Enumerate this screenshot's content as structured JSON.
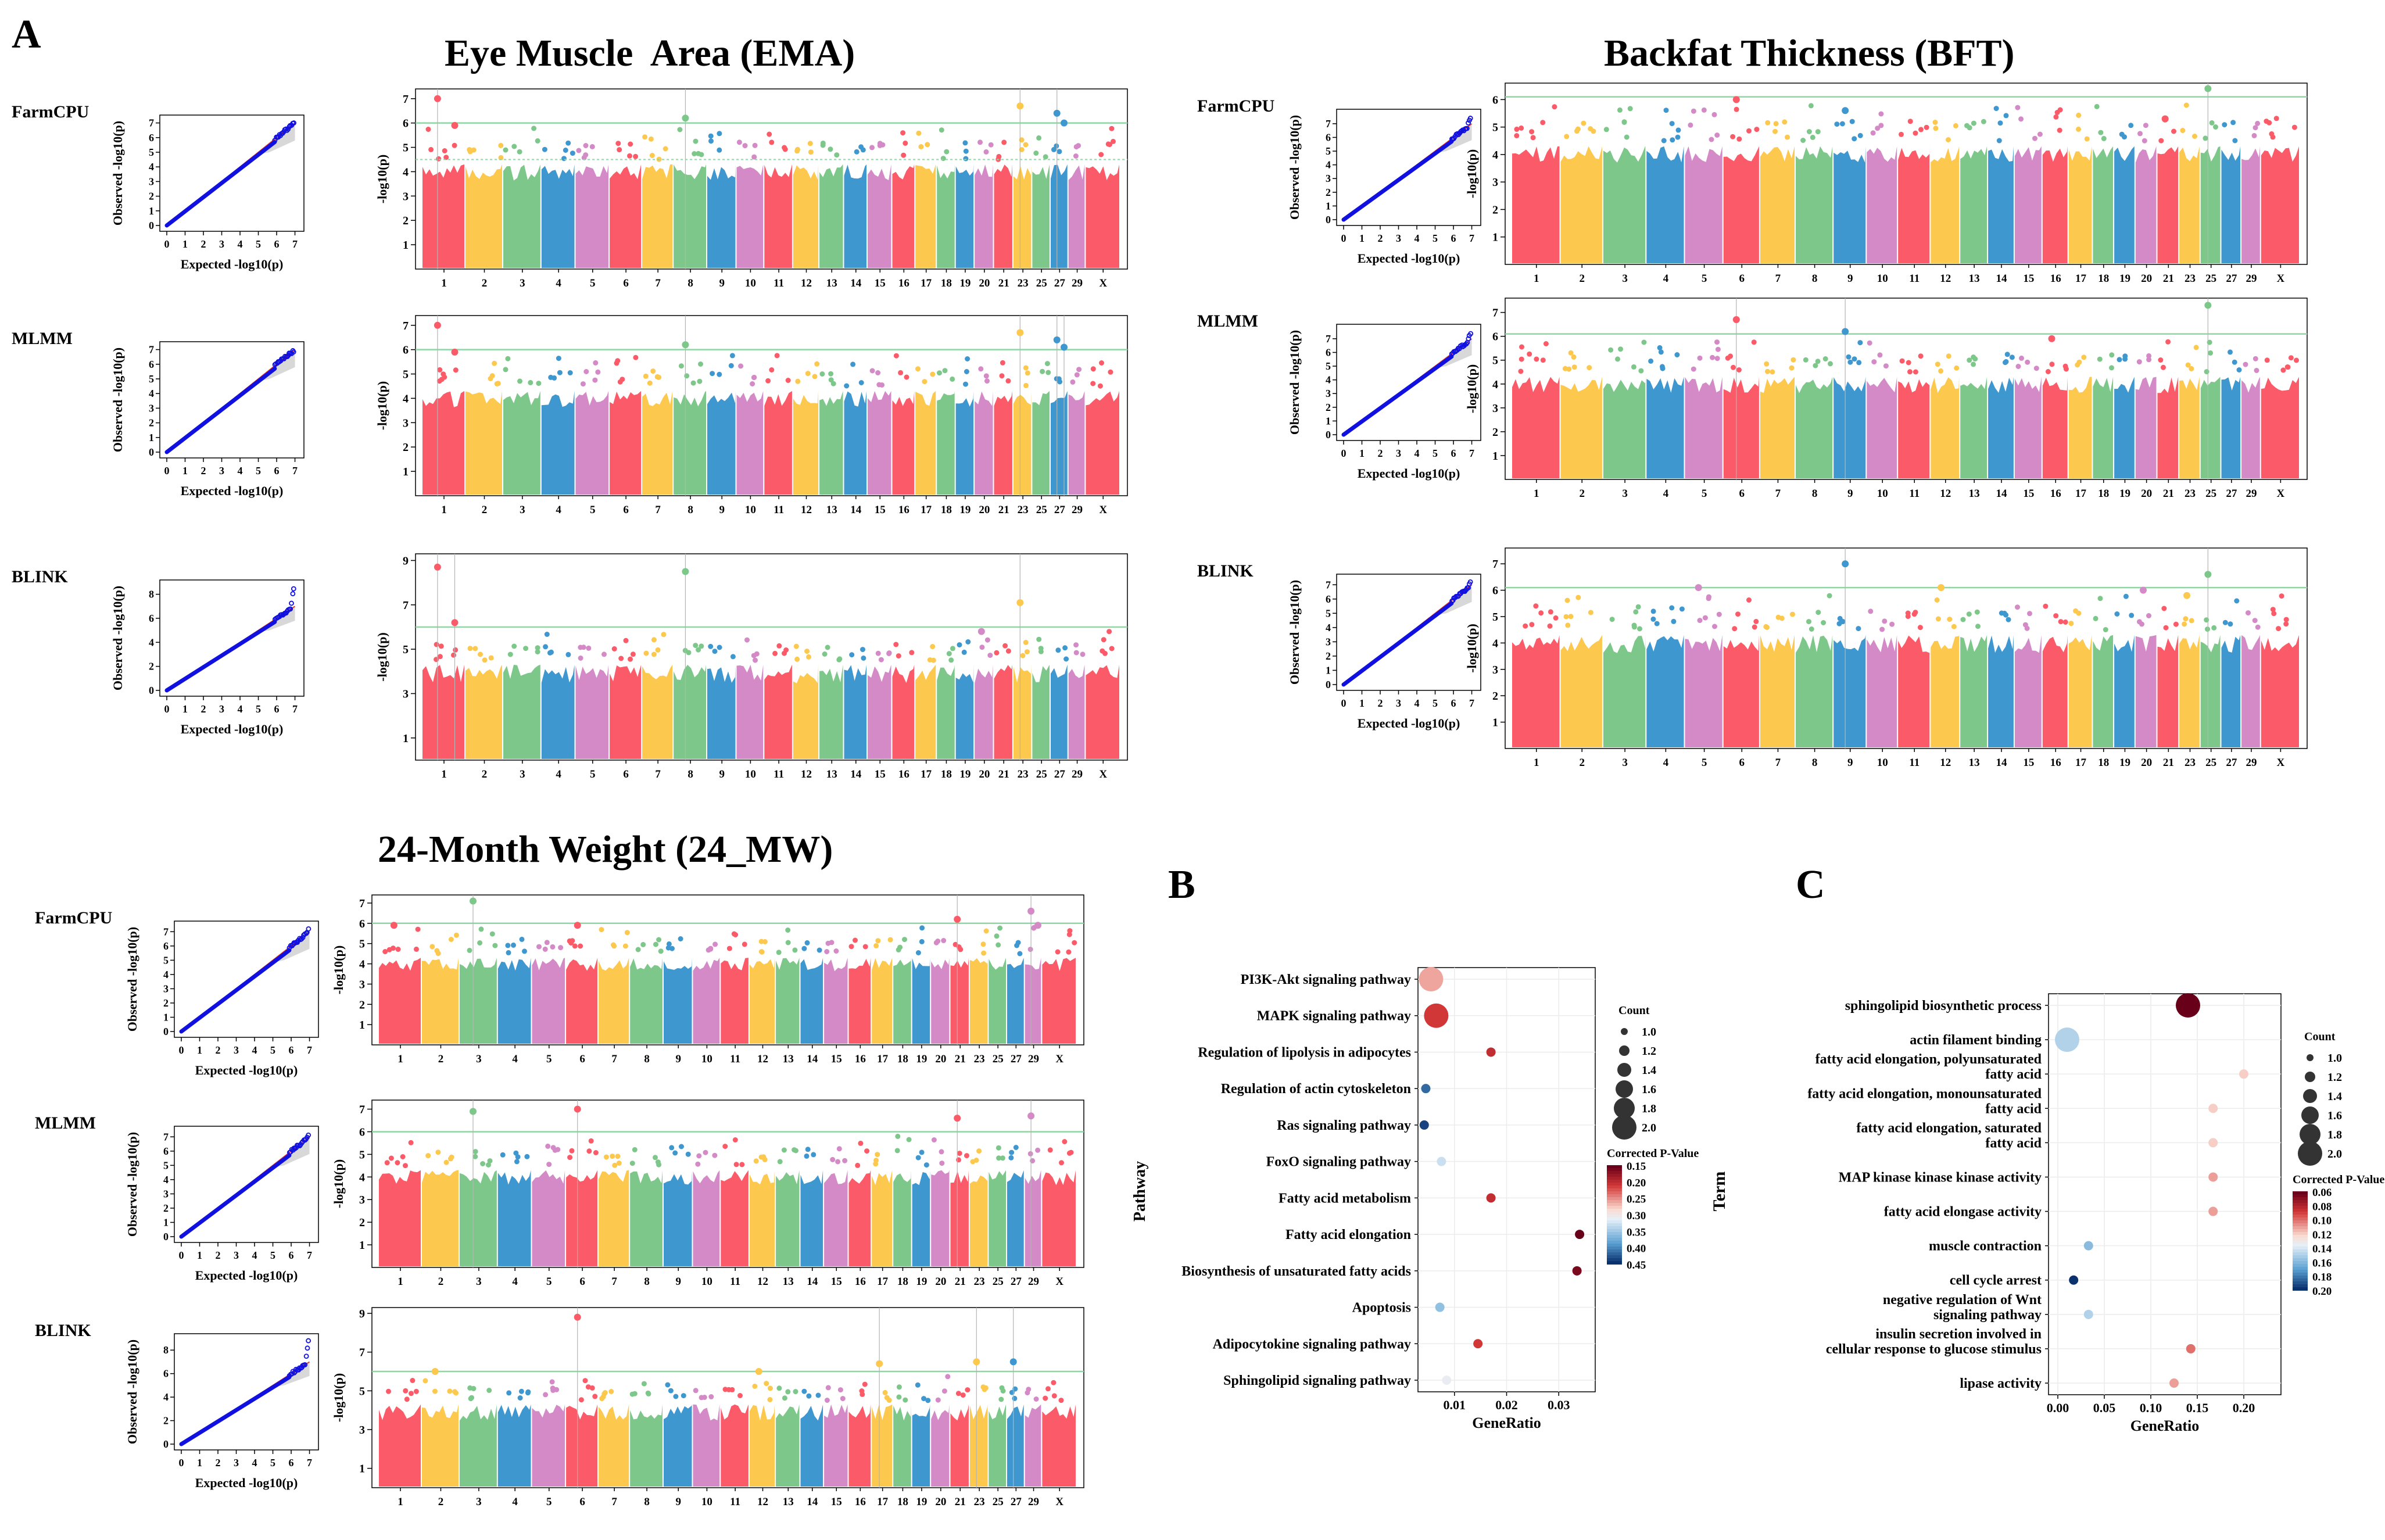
{
  "panel_letters": {
    "a": "A",
    "b": "B",
    "c": "C"
  },
  "method_names": [
    "FarmCPU",
    "MLMM",
    "BLINK"
  ],
  "qq_labels": {
    "xlabel": "Expected -log10(p)",
    "ylabel": "Observed -log10(p)"
  },
  "manhattan_ylabel": "-log10(p)",
  "chromosome_labels": [
    "1",
    "2",
    "3",
    "4",
    "5",
    "6",
    "7",
    "8",
    "9",
    "10",
    "11",
    "12",
    "13",
    "14",
    "15",
    "16",
    "17",
    "18",
    "19",
    "20",
    "21",
    "23",
    "25",
    "27",
    "29",
    "X"
  ],
  "colors": {
    "palette": [
      "#fb5a68",
      "#fcc84e",
      "#7ec78a",
      "#3f97cf",
      "#d48ac6"
    ],
    "threshold": "#8fd6a4",
    "qq_points": "#1010e0",
    "qq_line": "#e23a2a",
    "chr_line": "#b4b4b4"
  },
  "chart_data": [
    {
      "type": "qq",
      "trait": "Eye Muscle Area (EMA)",
      "method": "FarmCPU",
      "xlim": [
        0,
        7
      ],
      "ylim": [
        0,
        7
      ],
      "max_observed": 7.0
    },
    {
      "type": "scatter",
      "trait": "Eye Muscle Area (EMA)",
      "method": "FarmCPU",
      "ylabel": "-log10(p)",
      "yticks": [
        1,
        2,
        3,
        4,
        5,
        6,
        7
      ],
      "ylim": [
        0,
        7.4
      ],
      "threshold": 6.0,
      "suggestive": 4.5,
      "baseline": 4.2,
      "peaks": [
        {
          "chr": "1",
          "value": 7.0
        },
        {
          "chr": "1",
          "value": 5.9
        },
        {
          "chr": "8",
          "value": 6.2
        },
        {
          "chr": "23",
          "value": 6.7
        },
        {
          "chr": "27",
          "value": 6.4
        },
        {
          "chr": "27",
          "value": 6.0
        }
      ]
    },
    {
      "type": "qq",
      "trait": "Eye Muscle Area (EMA)",
      "method": "MLMM",
      "xlim": [
        0,
        7
      ],
      "ylim": [
        0,
        7
      ],
      "max_observed": 7.0
    },
    {
      "type": "scatter",
      "trait": "Eye Muscle Area (EMA)",
      "method": "MLMM",
      "ylabel": "-log10(p)",
      "yticks": [
        1,
        2,
        3,
        4,
        5,
        6,
        7
      ],
      "ylim": [
        0,
        7.4
      ],
      "threshold": 6.0,
      "baseline": 4.2,
      "peaks": [
        {
          "chr": "1",
          "value": 7.0
        },
        {
          "chr": "1",
          "value": 5.9
        },
        {
          "chr": "8",
          "value": 6.2
        },
        {
          "chr": "23",
          "value": 6.7
        },
        {
          "chr": "27",
          "value": 6.4
        },
        {
          "chr": "27",
          "value": 6.1
        }
      ]
    },
    {
      "type": "qq",
      "trait": "Eye Muscle Area (EMA)",
      "method": "BLINK",
      "xlim": [
        0,
        7
      ],
      "ylim": [
        0,
        8.6
      ],
      "max_observed": 8.6
    },
    {
      "type": "scatter",
      "trait": "Eye Muscle Area (EMA)",
      "method": "BLINK",
      "ylabel": "-log10(p)",
      "yticks": [
        1,
        3,
        5,
        7,
        9
      ],
      "ylim": [
        0,
        9.3
      ],
      "threshold": 6.0,
      "baseline": 4.2,
      "peaks": [
        {
          "chr": "1",
          "value": 8.7
        },
        {
          "chr": "1",
          "value": 6.2
        },
        {
          "chr": "8",
          "value": 8.5
        },
        {
          "chr": "23",
          "value": 7.1
        },
        {
          "chr": "20",
          "value": 5.8
        }
      ]
    },
    {
      "type": "qq",
      "trait": "Backfat Thickness (BFT)",
      "method": "FarmCPU",
      "xlim": [
        0,
        7
      ],
      "ylim": [
        0,
        7.5
      ],
      "max_observed": 7.5
    },
    {
      "type": "scatter",
      "trait": "Backfat Thickness (BFT)",
      "method": "FarmCPU",
      "ylabel": "-log10(p)",
      "yticks": [
        1,
        2,
        3,
        4,
        5,
        6
      ],
      "ylim": [
        0,
        6.6
      ],
      "threshold": 6.1,
      "baseline": 4.2,
      "peaks": [
        {
          "chr": "6",
          "value": 6.0
        },
        {
          "chr": "9",
          "value": 5.6
        },
        {
          "chr": "25",
          "value": 6.4
        },
        {
          "chr": "21",
          "value": 5.3
        }
      ]
    },
    {
      "type": "qq",
      "trait": "Backfat Thickness (BFT)",
      "method": "MLMM",
      "xlim": [
        0,
        7
      ],
      "ylim": [
        0,
        7.5
      ],
      "max_observed": 7.5
    },
    {
      "type": "scatter",
      "trait": "Backfat Thickness (BFT)",
      "method": "MLMM",
      "ylabel": "-log10(p)",
      "yticks": [
        1,
        2,
        3,
        4,
        5,
        6,
        7
      ],
      "ylim": [
        0,
        7.6
      ],
      "threshold": 6.1,
      "baseline": 4.2,
      "peaks": [
        {
          "chr": "6",
          "value": 6.7
        },
        {
          "chr": "9",
          "value": 6.2
        },
        {
          "chr": "25",
          "value": 7.3
        },
        {
          "chr": "16",
          "value": 5.9
        }
      ]
    },
    {
      "type": "qq",
      "trait": "Backfat Thickness (BFT)",
      "method": "BLINK",
      "xlim": [
        0,
        7
      ],
      "ylim": [
        0,
        7.2
      ],
      "max_observed": 7.2
    },
    {
      "type": "scatter",
      "trait": "Backfat Thickness (BFT)",
      "method": "BLINK",
      "ylabel": "-log10(p)",
      "yticks": [
        1,
        2,
        3,
        4,
        5,
        6,
        7
      ],
      "ylim": [
        0,
        7.6
      ],
      "threshold": 6.1,
      "baseline": 4.2,
      "peaks": [
        {
          "chr": "9",
          "value": 7.0
        },
        {
          "chr": "25",
          "value": 6.6
        },
        {
          "chr": "12",
          "value": 6.1
        },
        {
          "chr": "5",
          "value": 6.1
        },
        {
          "chr": "20",
          "value": 6.0
        },
        {
          "chr": "23",
          "value": 5.8
        }
      ]
    },
    {
      "type": "qq",
      "trait": "24-Month Weight (24_MW)",
      "method": "FarmCPU",
      "xlim": [
        0,
        7
      ],
      "ylim": [
        0,
        7.2
      ],
      "max_observed": 7.2
    },
    {
      "type": "scatter",
      "trait": "24-Month Weight (24_MW)",
      "method": "FarmCPU",
      "ylabel": "-log10(p)",
      "yticks": [
        1,
        2,
        3,
        4,
        5,
        6,
        7
      ],
      "ylim": [
        0,
        7.4
      ],
      "threshold": 6.0,
      "baseline": 4.2,
      "peaks": [
        {
          "chr": "3",
          "value": 7.1
        },
        {
          "chr": "1",
          "value": 5.9
        },
        {
          "chr": "6",
          "value": 5.9
        },
        {
          "chr": "21",
          "value": 6.2
        },
        {
          "chr": "29",
          "value": 6.6
        },
        {
          "chr": "29",
          "value": 5.9
        }
      ]
    },
    {
      "type": "qq",
      "trait": "24-Month Weight (24_MW)",
      "method": "MLMM",
      "xlim": [
        0,
        7
      ],
      "ylim": [
        0,
        7.2
      ],
      "max_observed": 7.2
    },
    {
      "type": "scatter",
      "trait": "24-Month Weight (24_MW)",
      "method": "MLMM",
      "ylabel": "-log10(p)",
      "yticks": [
        1,
        2,
        3,
        4,
        5,
        6,
        7
      ],
      "ylim": [
        0,
        7.4
      ],
      "threshold": 6.0,
      "baseline": 4.2,
      "peaks": [
        {
          "chr": "3",
          "value": 6.9
        },
        {
          "chr": "6",
          "value": 7.0
        },
        {
          "chr": "21",
          "value": 6.6
        },
        {
          "chr": "29",
          "value": 6.7
        }
      ]
    },
    {
      "type": "qq",
      "trait": "24-Month Weight (24_MW)",
      "method": "BLINK",
      "xlim": [
        0,
        7
      ],
      "ylim": [
        0,
        8.8
      ],
      "max_observed": 8.8
    },
    {
      "type": "scatter",
      "trait": "24-Month Weight (24_MW)",
      "method": "BLINK",
      "ylabel": "-log10(p)",
      "yticks": [
        1,
        3,
        5,
        7,
        9
      ],
      "ylim": [
        0,
        9.3
      ],
      "threshold": 6.0,
      "baseline": 4.2,
      "peaks": [
        {
          "chr": "6",
          "value": 8.8
        },
        {
          "chr": "2",
          "value": 6.0
        },
        {
          "chr": "17",
          "value": 6.4
        },
        {
          "chr": "23",
          "value": 6.5
        },
        {
          "chr": "27",
          "value": 6.5
        },
        {
          "chr": "12",
          "value": 6.0
        }
      ]
    },
    {
      "type": "scatter",
      "subtype": "dotplot",
      "panel": "B",
      "xlabel": "GeneRatio",
      "ylabel": "Pathway",
      "xticks": [
        0.01,
        0.02,
        0.03
      ],
      "xlim": [
        0.003,
        0.037
      ],
      "categories": [
        "PI3K-Akt signaling pathway",
        "MAPK signaling pathway",
        "Regulation of lipolysis in adipocytes",
        "Regulation of actin cytoskeleton",
        "Ras signaling pathway",
        "FoxO signaling pathway",
        "Fatty acid metabolism",
        "Fatty acid elongation",
        "Biosynthesis of unsaturated fatty acids",
        "Apoptosis",
        "Adipocytokine signaling pathway",
        "Sphingolipid signaling pathway"
      ],
      "gene_ratio": [
        0.0055,
        0.0065,
        0.017,
        0.0045,
        0.0042,
        0.0075,
        0.017,
        0.034,
        0.0335,
        0.0072,
        0.0145,
        0.0085
      ],
      "count": [
        2,
        2,
        1,
        1,
        1,
        1,
        1,
        1,
        1,
        1,
        1,
        1
      ],
      "corrected_p": [
        0.26,
        0.21,
        0.2,
        0.42,
        0.44,
        0.33,
        0.2,
        0.15,
        0.16,
        0.36,
        0.21,
        0.31
      ],
      "size_legend": {
        "title": "Count",
        "values": [
          1.0,
          1.2,
          1.4,
          1.6,
          1.8,
          2.0
        ],
        "labels": [
          "1.0",
          "1.2",
          "1.4",
          "1.6",
          "1.8",
          "2.0"
        ]
      },
      "color_legend": {
        "title": "Corrected P-Value",
        "labels": [
          "0.15",
          "0.20",
          "0.25",
          "0.30",
          "0.35",
          "0.40",
          "0.45"
        ]
      }
    },
    {
      "type": "scatter",
      "subtype": "dotplot",
      "panel": "C",
      "xlabel": "GeneRatio",
      "ylabel": "Term",
      "xticks": [
        0.0,
        0.05,
        0.1,
        0.15,
        0.2
      ],
      "xtick_labels": [
        "0.00",
        "0.05",
        "0.10",
        "0.15",
        "0.20"
      ],
      "xlim": [
        -0.01,
        0.24
      ],
      "categories": [
        "sphingolipid biosynthetic process",
        "actin filament binding",
        "fatty acid elongation, polyunsaturated fatty acid",
        "fatty acid elongation, monounsaturated fatty acid",
        "fatty acid elongation, saturated fatty acid",
        "MAP kinase kinase kinase activity",
        "fatty acid elongase activity",
        "muscle contraction",
        "cell cycle arrest",
        "negative regulation of Wnt signaling pathway",
        "insulin secretion involved in cellular response to glucose stimulus",
        "lipase activity"
      ],
      "category_lines": [
        [
          "sphingolipid biosynthetic process"
        ],
        [
          "actin filament binding"
        ],
        [
          "fatty acid elongation, polyunsaturated",
          "fatty acid"
        ],
        [
          "fatty acid elongation, monounsaturated",
          "fatty acid"
        ],
        [
          "fatty acid elongation, saturated",
          "fatty acid"
        ],
        [
          "MAP kinase kinase kinase activity"
        ],
        [
          "fatty acid elongase activity"
        ],
        [
          "muscle contraction"
        ],
        [
          "cell cycle arrest"
        ],
        [
          "negative regulation of Wnt",
          "signaling pathway"
        ],
        [
          "insulin secretion involved in",
          "cellular response to glucose stimulus"
        ],
        [
          "lipase activity"
        ]
      ],
      "gene_ratio": [
        0.14,
        0.01,
        0.2,
        0.167,
        0.167,
        0.167,
        0.167,
        0.033,
        0.017,
        0.033,
        0.143,
        0.125
      ],
      "count": [
        2,
        2,
        1,
        1,
        1,
        1,
        1,
        1,
        1,
        1,
        1,
        1
      ],
      "corrected_p": [
        0.06,
        0.15,
        0.12,
        0.12,
        0.12,
        0.11,
        0.11,
        0.16,
        0.2,
        0.15,
        0.1,
        0.11
      ],
      "size_legend": {
        "title": "Count",
        "values": [
          1.0,
          1.2,
          1.4,
          1.6,
          1.8,
          2.0
        ],
        "labels": [
          "1.0",
          "1.2",
          "1.4",
          "1.6",
          "1.8",
          "2.0"
        ]
      },
      "color_legend": {
        "title": "Corrected P-Value",
        "labels": [
          "0.06",
          "0.08",
          "0.10",
          "0.12",
          "0.14",
          "0.16",
          "0.18",
          "0.20"
        ]
      }
    }
  ],
  "trait_titles": [
    "Eye Muscle  Area (EMA)",
    "Backfat Thickness (BFT)",
    "24-Month Weight (24_MW)"
  ]
}
